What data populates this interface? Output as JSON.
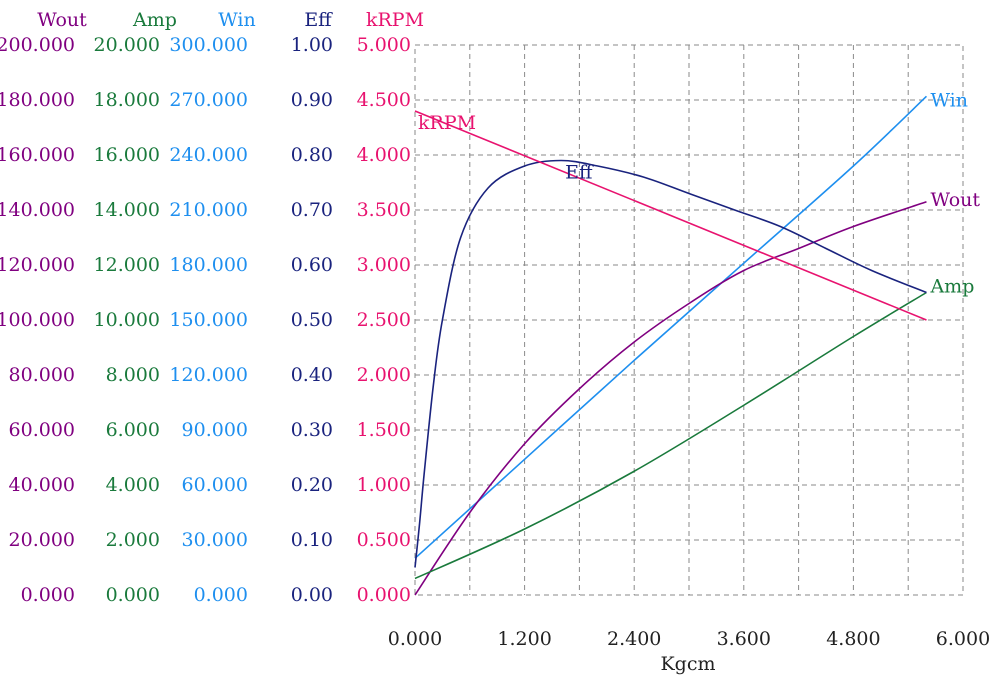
{
  "chart_data": {
    "type": "line",
    "xlabel": "Kgcm",
    "x_ticks": [
      "0.000",
      "1.200",
      "2.400",
      "3.600",
      "4.800",
      "6.000"
    ],
    "xlim": [
      0,
      6
    ],
    "axes": [
      {
        "key": "wout",
        "header": "Wout",
        "color": "#800080",
        "min": 0,
        "max": 200,
        "ticks": [
          "0.000",
          "20.000",
          "40.000",
          "60.000",
          "80.000",
          "100.000",
          "120.000",
          "140.000",
          "160.000",
          "180.000",
          "200.000"
        ]
      },
      {
        "key": "amp",
        "header": "Amp",
        "color": "#1a7a3c",
        "min": 0,
        "max": 20,
        "ticks": [
          "0.000",
          "2.000",
          "4.000",
          "6.000",
          "8.000",
          "10.000",
          "12.000",
          "14.000",
          "16.000",
          "18.000",
          "20.000"
        ]
      },
      {
        "key": "win",
        "header": "Win",
        "color": "#1e8fef",
        "min": 0,
        "max": 300,
        "ticks": [
          "0.000",
          "30.000",
          "60.000",
          "90.000",
          "120.000",
          "150.000",
          "180.000",
          "210.000",
          "240.000",
          "270.000",
          "300.000"
        ]
      },
      {
        "key": "eff",
        "header": "Eff",
        "color": "#1a237e",
        "min": 0,
        "max": 1,
        "ticks": [
          "0.00",
          "0.10",
          "0.20",
          "0.30",
          "0.40",
          "0.50",
          "0.60",
          "0.70",
          "0.80",
          "0.90",
          "1.00"
        ]
      },
      {
        "key": "krpm",
        "header": "kRPM",
        "color": "#e8136f",
        "min": 0,
        "max": 5,
        "ticks": [
          "0.000",
          "0.500",
          "1.000",
          "1.500",
          "2.000",
          "2.500",
          "3.000",
          "3.500",
          "4.000",
          "4.500",
          "5.000"
        ]
      }
    ],
    "series": [
      {
        "name": "Win",
        "axis": "win",
        "color": "#1e8fef",
        "x": [
          0,
          1.2,
          2.4,
          3.6,
          4.8,
          5.6
        ],
        "y": [
          20,
          74,
          128,
          181,
          234,
          272
        ]
      },
      {
        "name": "Wout",
        "axis": "wout",
        "color": "#800080",
        "x": [
          0,
          0.6,
          1.2,
          1.8,
          2.4,
          3.0,
          3.6,
          4.2,
          4.8,
          5.6
        ],
        "y": [
          0,
          30,
          55,
          75,
          92,
          106,
          118,
          126,
          134,
          143
        ]
      },
      {
        "name": "Amp",
        "axis": "amp",
        "color": "#1a7a3c",
        "x": [
          0,
          1.2,
          2.4,
          3.6,
          4.8,
          5.6
        ],
        "y": [
          0.6,
          2.4,
          4.5,
          6.9,
          9.4,
          11.0
        ]
      },
      {
        "name": "Eff",
        "axis": "eff",
        "color": "#1a237e",
        "x": [
          0,
          0.05,
          0.1,
          0.2,
          0.3,
          0.5,
          0.8,
          1.2,
          1.6,
          2.0,
          2.5,
          3.0,
          3.5,
          4.0,
          4.5,
          5.0,
          5.6
        ],
        "y": [
          0.05,
          0.13,
          0.22,
          0.38,
          0.5,
          0.65,
          0.74,
          0.78,
          0.79,
          0.78,
          0.76,
          0.73,
          0.7,
          0.67,
          0.63,
          0.59,
          0.55
        ]
      },
      {
        "name": "kRPM",
        "axis": "krpm",
        "color": "#e8136f",
        "x": [
          0,
          5.6
        ],
        "y": [
          4.4,
          2.5
        ]
      }
    ]
  }
}
